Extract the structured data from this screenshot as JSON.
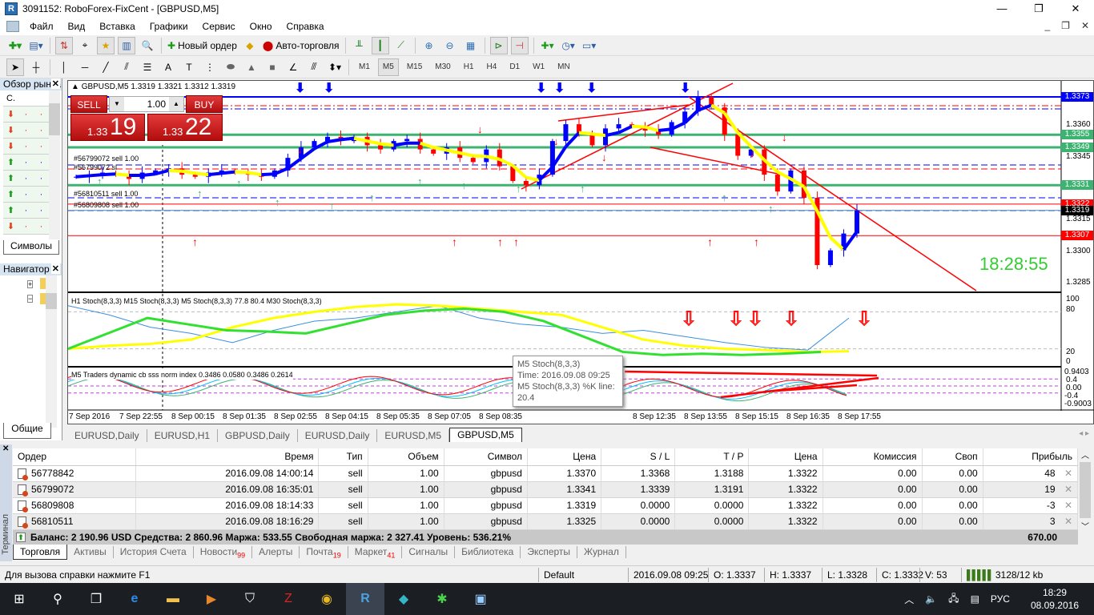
{
  "window": {
    "title": "3091152: RoboForex-FixCent - [GBPUSD,M5]",
    "minimize": "—",
    "restore": "❐",
    "close": "✕"
  },
  "menu": [
    "Файл",
    "Вид",
    "Вставка",
    "Графики",
    "Сервис",
    "Окно",
    "Справка"
  ],
  "toolbar": {
    "new_order": "Новый ордер",
    "auto_trading": "Авто-торговля"
  },
  "timeframes": [
    "M1",
    "M5",
    "M15",
    "M30",
    "H1",
    "H4",
    "D1",
    "W1",
    "MN"
  ],
  "active_timeframe": "M5",
  "market_watch": {
    "title": "Обзор рынка",
    "col": "С.",
    "tab": "Символы",
    "directions": [
      "down",
      "down",
      "down",
      "up",
      "up",
      "up",
      "up",
      "down"
    ]
  },
  "navigator": {
    "title": "Навигатор",
    "tab": "Общие"
  },
  "chart": {
    "header": "GBPUSD,M5  1.3319 1.3321 1.3312 1.3319",
    "one_click": {
      "sell": "SELL",
      "buy": "BUY",
      "lot": "1.00",
      "bid_big": "19",
      "bid_small": "1.33",
      "ask_big": "22",
      "ask_small": "1.33"
    },
    "order_labels": [
      "#56799072 sell 1.00",
      "#56799072 sl",
      "#56810511 sell 1.00",
      "#56809808 sell 1.00"
    ],
    "price_ticks": [
      "1.3360",
      "1.3345",
      "1.3315",
      "1.3300",
      "1.3285"
    ],
    "price_ticks_values": [
      1.336,
      1.3345,
      1.3315,
      1.33,
      1.3285
    ],
    "levels": [
      {
        "price": "1.3373",
        "color": "#0000ff"
      },
      {
        "price": "1.3355",
        "color": "#3cb371"
      },
      {
        "price": "1.3349",
        "color": "#3cb371"
      },
      {
        "price": "1.3331",
        "color": "#3cb371"
      },
      {
        "price": "1.3322",
        "color": "#ff0000"
      },
      {
        "price": "1.3319",
        "color": "#000000"
      },
      {
        "price": "1.3307",
        "color": "#ff0000"
      }
    ],
    "closes": [
      1.3335,
      1.3336,
      1.3337,
      1.3336,
      1.3334,
      1.3337,
      1.3338,
      1.3339,
      1.3336,
      1.3335,
      1.3337,
      1.3338,
      1.3337,
      1.3336,
      1.3335,
      1.3338,
      1.3344,
      1.3349,
      1.3352,
      1.3354,
      1.3352,
      1.3354,
      1.335,
      1.3348,
      1.3352,
      1.3353,
      1.3348,
      1.3346,
      1.3349,
      1.3344,
      1.3342,
      1.3348,
      1.334,
      1.3333,
      1.3331,
      1.3336,
      1.3352,
      1.336,
      1.3356,
      1.335,
      1.3358,
      1.336,
      1.3359,
      1.3357,
      1.3355,
      1.3361,
      1.3366,
      1.3373,
      1.3368,
      1.3355,
      1.3345,
      1.3348,
      1.3336,
      1.3328,
      1.3338,
      1.3325,
      1.3293,
      1.33,
      1.3308,
      1.3319
    ],
    "clock": "18:28:55",
    "up_color": "#0000ff",
    "down_color": "#ff0000"
  },
  "stoch": {
    "label": "H1 Stoch(8,3,3)  M15 Stoch(8,3,3)  M5 Stoch(8,3,3) 77.8 80.4  M30 Stoch(8,3,3)",
    "ticks": [
      "100",
      "80",
      "20",
      "0"
    ],
    "h1": [
      20,
      25,
      28,
      35,
      55,
      70,
      80,
      88,
      92,
      90,
      85,
      80,
      75,
      55,
      35,
      25,
      20,
      18,
      15,
      16
    ],
    "m30": [
      20,
      45,
      70,
      60,
      50,
      48,
      45,
      60,
      75,
      82,
      85,
      80,
      65,
      40,
      15,
      10,
      12,
      10,
      12,
      15
    ],
    "m15": [
      90,
      75,
      55,
      45,
      30,
      50,
      65,
      70,
      80,
      90,
      70,
      60,
      55,
      45,
      50,
      40,
      30,
      22,
      18,
      70
    ]
  },
  "tdi": {
    "label": "M5  Traders dynamic cb sss norm index 0.3486 0.0580 0.3486 0.2614",
    "ticks": [
      "0.9403",
      "0.4",
      "0.00",
      "-0.4",
      "-0.9003"
    ]
  },
  "tooltip": {
    "line1": "M5 Stoch(8,3,3)",
    "line2": "Time: 2016.09.08 09:25",
    "line3": "M5 Stoch(8,3,3) %K line:",
    "line4": "20.4"
  },
  "time_labels": [
    "7 Sep 2016",
    "7 Sep 22:55",
    "8 Sep 00:15",
    "8 Sep 01:35",
    "8 Sep 02:55",
    "8 Sep 04:15",
    "8 Sep 05:35",
    "8 Sep 07:05",
    "8 Sep 08:35",
    "8 Sep 12:35",
    "8 Sep 13:55",
    "8 Sep 15:15",
    "8 Sep 16:35",
    "8 Sep 17:55"
  ],
  "chart_tabs": [
    "EURUSD,Daily",
    "EURUSD,H1",
    "GBPUSD,Daily",
    "EURUSD,Daily",
    "EURUSD,M5",
    "GBPUSD,M5"
  ],
  "terminal": {
    "side_label": "Терминал",
    "columns": [
      "Ордер",
      "Время",
      "Тип",
      "Объем",
      "Символ",
      "Цена",
      "S / L",
      "T / P",
      "Цена",
      "Комиссия",
      "Своп",
      "Прибыль"
    ],
    "rows": [
      [
        "56778842",
        "2016.09.08 14:00:14",
        "sell",
        "1.00",
        "gbpusd",
        "1.3370",
        "1.3368",
        "1.3188",
        "1.3322",
        "0.00",
        "0.00",
        "48"
      ],
      [
        "56799072",
        "2016.09.08 16:35:01",
        "sell",
        "1.00",
        "gbpusd",
        "1.3341",
        "1.3339",
        "1.3191",
        "1.3322",
        "0.00",
        "0.00",
        "19"
      ],
      [
        "56809808",
        "2016.09.08 18:14:33",
        "sell",
        "1.00",
        "gbpusd",
        "1.3319",
        "0.0000",
        "0.0000",
        "1.3322",
        "0.00",
        "0.00",
        "-3"
      ],
      [
        "56810511",
        "2016.09.08 18:16:29",
        "sell",
        "1.00",
        "gbpusd",
        "1.3325",
        "0.0000",
        "0.0000",
        "1.3322",
        "0.00",
        "0.00",
        "3"
      ]
    ],
    "balance": "Баланс: 2 190.96 USD  Средства: 2 860.96  Маржа: 533.55  Свободная маржа: 2 327.41  Уровень: 536.21%",
    "total": "670.00",
    "tabs": [
      {
        "label": "Торговля"
      },
      {
        "label": "Активы"
      },
      {
        "label": "История Счета"
      },
      {
        "label": "Новости",
        "badge": "99"
      },
      {
        "label": "Алерты"
      },
      {
        "label": "Почта",
        "badge": "19"
      },
      {
        "label": "Маркет",
        "badge": "41"
      },
      {
        "label": "Сигналы"
      },
      {
        "label": "Библиотека"
      },
      {
        "label": "Эксперты"
      },
      {
        "label": "Журнал"
      }
    ]
  },
  "status": {
    "help": "Для вызова справки нажмите F1",
    "profile": "Default",
    "time": "2016.09.08 09:25",
    "open": "O: 1.3337",
    "high": "H: 1.3337",
    "low": "L: 1.3328",
    "close": "C: 1.3332",
    "volume": "V: 53",
    "traffic": "3128/12 kb"
  },
  "taskbar": {
    "lang": "РУС",
    "time": "18:29",
    "date": "08.09.2016"
  }
}
